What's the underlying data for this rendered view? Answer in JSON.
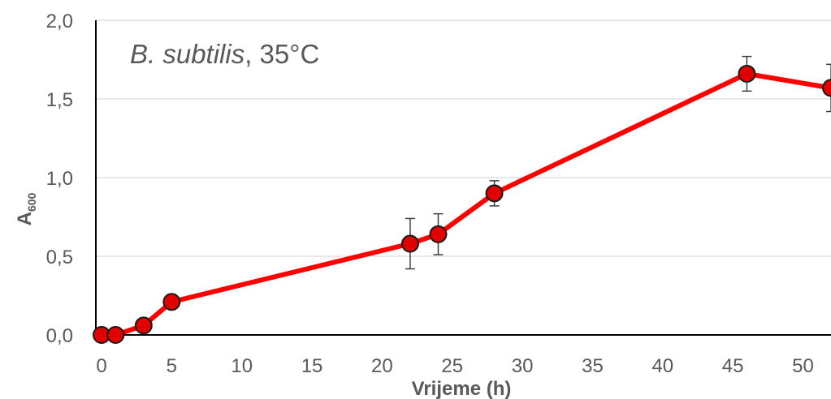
{
  "chart_data": {
    "type": "line",
    "title_italic": "B. subtilis",
    "title_rest": ", 35°C",
    "xlabel": "Vrijeme (h)",
    "ylabel_main": "A",
    "ylabel_sub": "600",
    "xlim": [
      0,
      52
    ],
    "ylim": [
      0,
      2.0
    ],
    "x_ticks": [
      0,
      5,
      10,
      15,
      20,
      25,
      30,
      35,
      40,
      45,
      50
    ],
    "x_tick_labels": [
      "0",
      "5",
      "10",
      "15",
      "20",
      "25",
      "30",
      "35",
      "40",
      "45",
      "50"
    ],
    "y_ticks": [
      0,
      0.5,
      1.0,
      1.5,
      2.0
    ],
    "y_tick_labels": [
      "0,0",
      "0,5",
      "1,0",
      "1,5",
      "2,0"
    ],
    "grid": "horizontal",
    "colors": {
      "line": "#ff0000",
      "marker_fill": "#e00000",
      "marker_edge": "#1a1a1a",
      "grid": "#d9d9d9",
      "axis": "#000000",
      "error_bar": "#404040",
      "text": "#595959"
    },
    "series": [
      {
        "x": [
          0,
          1,
          3,
          5,
          22,
          24,
          28,
          46,
          52
        ],
        "y": [
          0.0,
          0.0,
          0.06,
          0.21,
          0.58,
          0.64,
          0.9,
          1.66,
          1.57
        ],
        "error": [
          0,
          0,
          0,
          0,
          0.16,
          0.13,
          0.08,
          0.11,
          0.15
        ]
      }
    ]
  }
}
